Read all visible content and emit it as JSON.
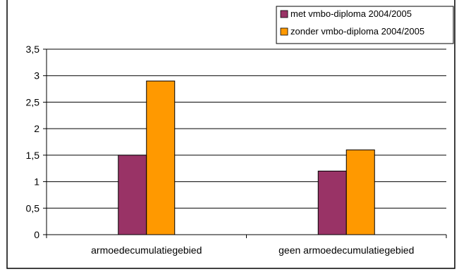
{
  "chart_data": {
    "type": "bar",
    "categories": [
      "armoedecumulatiegebied",
      "geen armoedecumulatiegebied"
    ],
    "series": [
      {
        "name": "met vmbo-diploma 2004/2005",
        "values": [
          1.5,
          1.2
        ],
        "color": "#993366"
      },
      {
        "name": "zonder vmbo-diploma 2004/2005",
        "values": [
          2.9,
          1.6
        ],
        "color": "#ff9900"
      }
    ],
    "ylim": [
      0,
      3.5
    ],
    "yticks": [
      "0",
      "0,5",
      "1",
      "1,5",
      "2",
      "2,5",
      "3",
      "3,5"
    ],
    "grid": true,
    "legend_position": "top-right",
    "plot_background": "#ffffff",
    "frame_background": "#ffffff"
  }
}
